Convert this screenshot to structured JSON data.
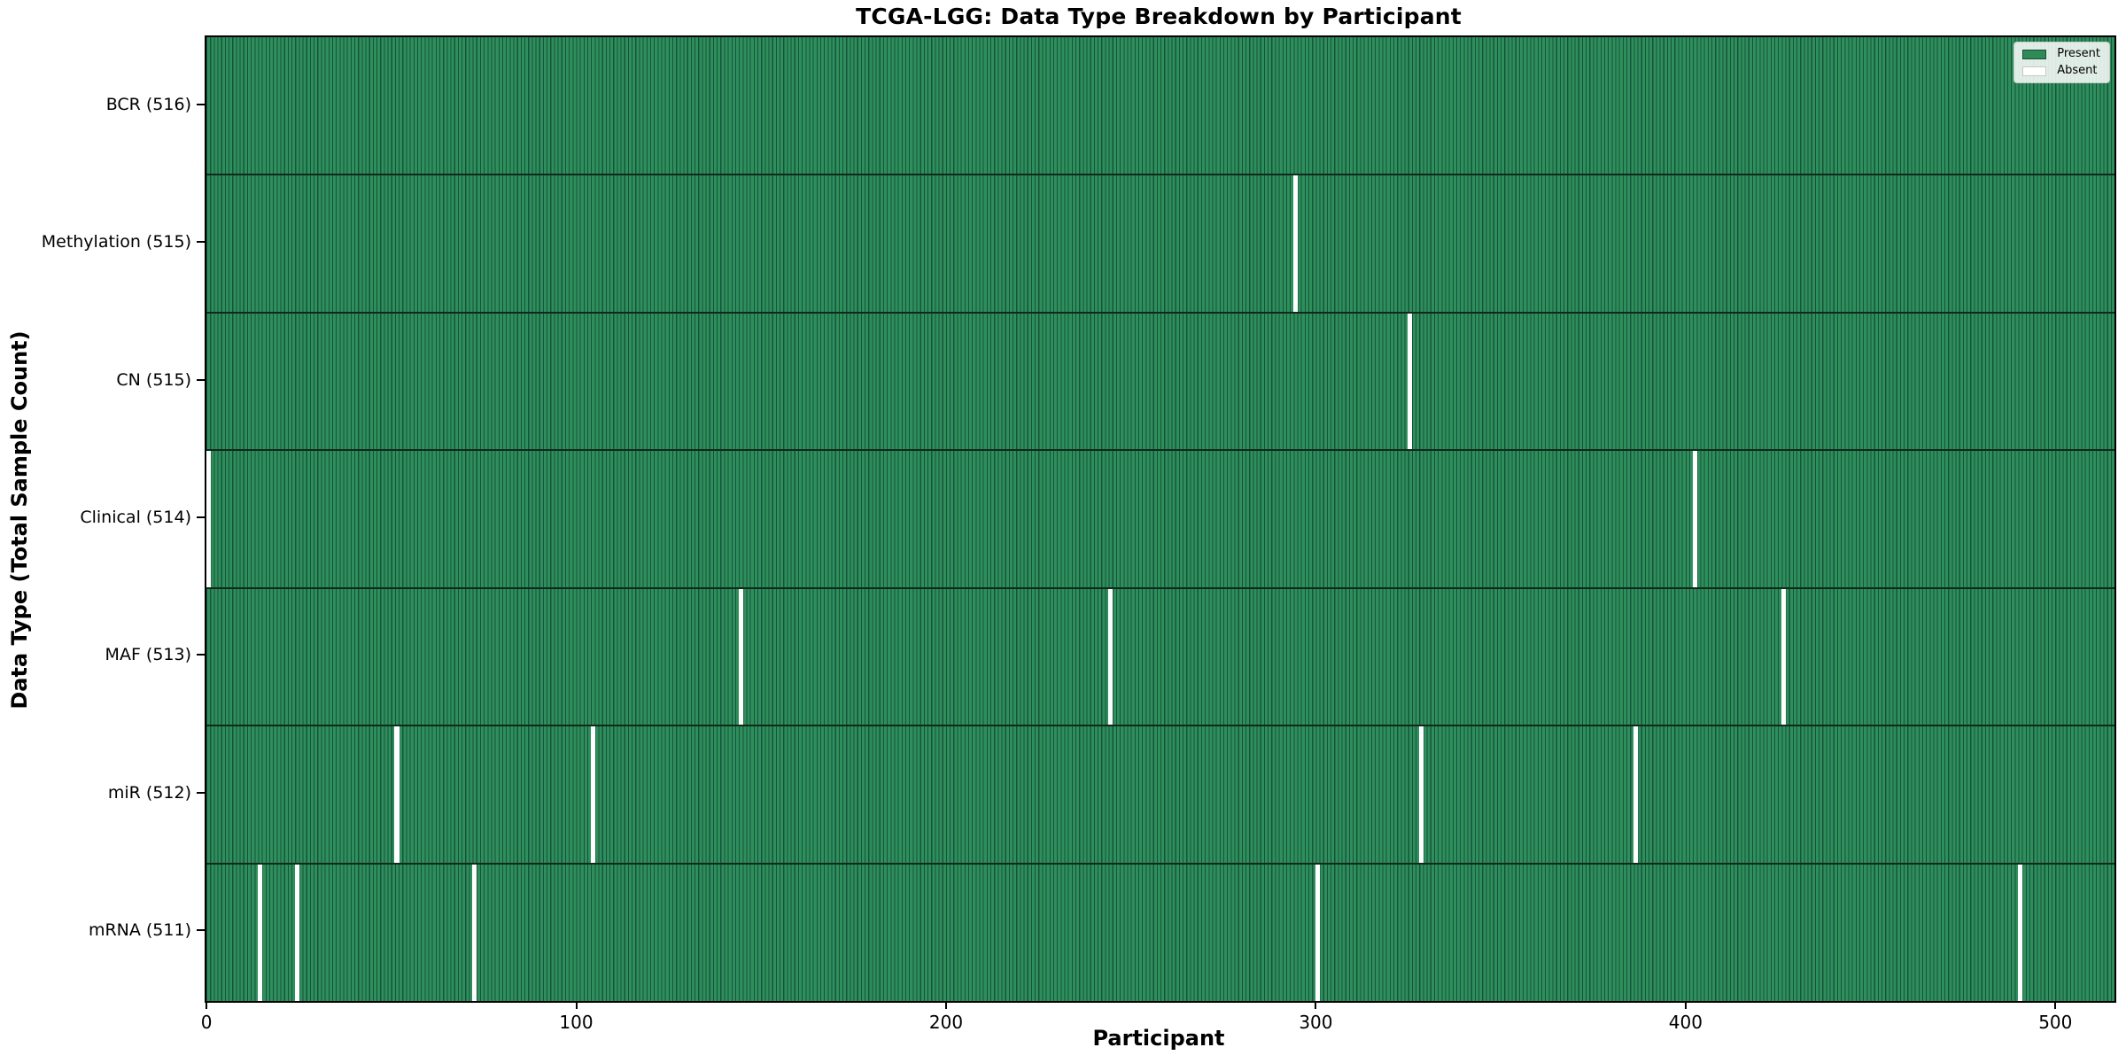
{
  "chart_data": {
    "type": "heatmap",
    "title": "TCGA-LGG: Data Type Breakdown by Participant",
    "xlabel": "Participant",
    "ylabel": "Data Type (Total Sample Count)",
    "x_ticks": [
      0,
      100,
      200,
      300,
      400,
      500
    ],
    "x_range": [
      -0.5,
      515.5
    ],
    "n_participants": 516,
    "grid": false,
    "legend_position": "upper right",
    "legend": [
      {
        "label": "Present",
        "color": "#2e8b57"
      },
      {
        "label": "Absent",
        "color": "#ffffff"
      }
    ],
    "rows": [
      {
        "label": "BCR (516)",
        "data_type": "BCR",
        "total": 516,
        "absent_participants": []
      },
      {
        "label": "Methylation (515)",
        "data_type": "Methylation",
        "total": 515,
        "absent_participants": [
          294
        ]
      },
      {
        "label": "CN (515)",
        "data_type": "CN",
        "total": 515,
        "absent_participants": [
          325
        ]
      },
      {
        "label": "Clinical (514)",
        "data_type": "Clinical",
        "total": 514,
        "absent_participants": [
          0,
          402
        ]
      },
      {
        "label": "MAF (513)",
        "data_type": "MAF",
        "total": 513,
        "absent_participants": [
          144,
          244,
          426
        ]
      },
      {
        "label": "miR (512)",
        "data_type": "miR",
        "total": 512,
        "absent_participants": [
          51,
          104,
          328,
          386
        ]
      },
      {
        "label": "mRNA (511)",
        "data_type": "mRNA",
        "total": 511,
        "absent_participants": [
          14,
          24,
          72,
          300,
          490
        ]
      }
    ],
    "colors": {
      "present": "#2e8f5c",
      "cell_edge": "#16533a",
      "absent": "#ffffff",
      "row_divider": "#10291b",
      "spine": "#000000"
    }
  }
}
